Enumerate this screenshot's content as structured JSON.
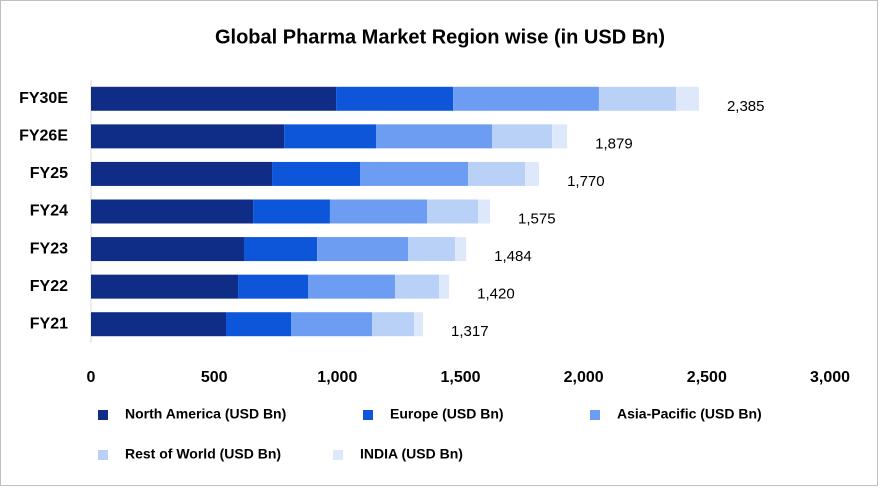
{
  "chart_data": {
    "type": "stacked-bar-horizontal",
    "title": "Global Pharma Market Region wise (in USD Bn)",
    "categories": [
      "FY30E",
      "FY26E",
      "FY25",
      "FY24",
      "FY23",
      "FY22",
      "FY21"
    ],
    "series": [
      {
        "name": "North America (USD Bn)",
        "color": "#0f2d86",
        "values": [
          995,
          784,
          735,
          658,
          621,
          597,
          548
        ]
      },
      {
        "name": "Europe (USD Bn)",
        "color": "#0d55d9",
        "values": [
          475,
          373,
          357,
          312,
          297,
          284,
          264
        ]
      },
      {
        "name": "Asia-Pacific (USD Bn)",
        "color": "#6c9df2",
        "values": [
          592,
          471,
          439,
          394,
          369,
          353,
          329
        ]
      },
      {
        "name": "Rest of World (USD Bn)",
        "color": "#b9d0f7",
        "values": [
          313,
          244,
          231,
          207,
          191,
          179,
          171
        ]
      },
      {
        "name": "INDIA (USD Bn)",
        "color": "#dee8fb",
        "values": [
          93,
          61,
          57,
          49,
          45,
          41,
          36
        ]
      }
    ],
    "totals": [
      {
        "value": 2385,
        "label": "2,385"
      },
      {
        "value": 1879,
        "label": "1,879"
      },
      {
        "value": 1770,
        "label": "1,770"
      },
      {
        "value": 1575,
        "label": "1,575"
      },
      {
        "value": 1484,
        "label": "1,484"
      },
      {
        "value": 1420,
        "label": "1,420"
      },
      {
        "value": 1317,
        "label": "1,317"
      }
    ],
    "xlim": [
      0,
      3000
    ],
    "xticks": [
      0,
      500,
      {
        "value": 1000,
        "label": "1,000"
      },
      {
        "value": 1500,
        "label": "1,500"
      },
      {
        "value": 2000,
        "label": "2,000"
      },
      {
        "value": 2500,
        "label": "2,500"
      },
      {
        "value": 3000,
        "label": "3,000"
      }
    ],
    "legend": "bottom"
  }
}
